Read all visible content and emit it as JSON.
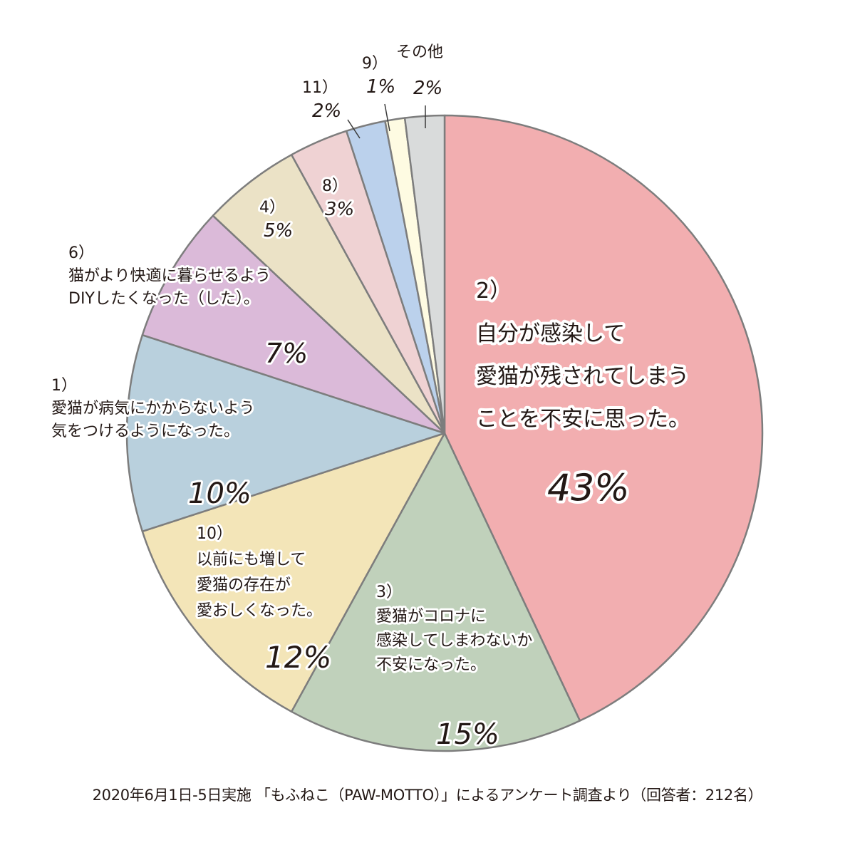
{
  "chart_data": {
    "type": "pie",
    "start_angle_deg": 0,
    "direction": "clockwise",
    "slices": [
      {
        "id": "s2",
        "num": "2）",
        "desc": [
          "自分が感染して",
          "愛猫が残されてしまう",
          "ことを不安に思った。"
        ],
        "value": 43,
        "label": "43%",
        "color": "#f2aeb0"
      },
      {
        "id": "s3",
        "num": "3）",
        "desc": [
          "愛猫がコロナに",
          "感染してしまわないか",
          "不安になった。"
        ],
        "value": 15,
        "label": "15%",
        "color": "#c0d1bb"
      },
      {
        "id": "s10",
        "num": "10）",
        "desc": [
          "以前にも増して",
          "愛猫の存在が",
          "愛おしくなった。"
        ],
        "value": 12,
        "label": "12%",
        "color": "#f3e5b8"
      },
      {
        "id": "s1",
        "num": "1）",
        "desc": [
          "愛猫が病気にかからないよう",
          "気をつけるようになった。"
        ],
        "value": 10,
        "label": "10%",
        "color": "#b9d0dd"
      },
      {
        "id": "s6",
        "num": "6）",
        "desc": [
          "猫がより快適に暮らせるよう",
          "DIYしたくなった（した）。"
        ],
        "value": 7,
        "label": "7%",
        "color": "#dbbad9"
      },
      {
        "id": "s4",
        "num": "4）",
        "desc": [],
        "value": 5,
        "label": "5%",
        "color": "#ebe2c6"
      },
      {
        "id": "s8",
        "num": "8）",
        "desc": [],
        "value": 3,
        "label": "3%",
        "color": "#efd2d3"
      },
      {
        "id": "s11",
        "num": "11）",
        "desc": [],
        "value": 2,
        "label": "2%",
        "color": "#bbd1ec"
      },
      {
        "id": "s9",
        "num": "9）",
        "desc": [],
        "value": 1,
        "label": "1%",
        "color": "#fefbe2"
      },
      {
        "id": "s_other",
        "num": "",
        "desc": [
          "その他"
        ],
        "value": 2,
        "label": "2%",
        "color": "#d9dbdb"
      }
    ],
    "title": "",
    "legend": "none"
  },
  "footer": "2020年6月1日-5日実施 「もふねこ（PAW-MOTTO）」によるアンケート調査より（回答者：212名）"
}
